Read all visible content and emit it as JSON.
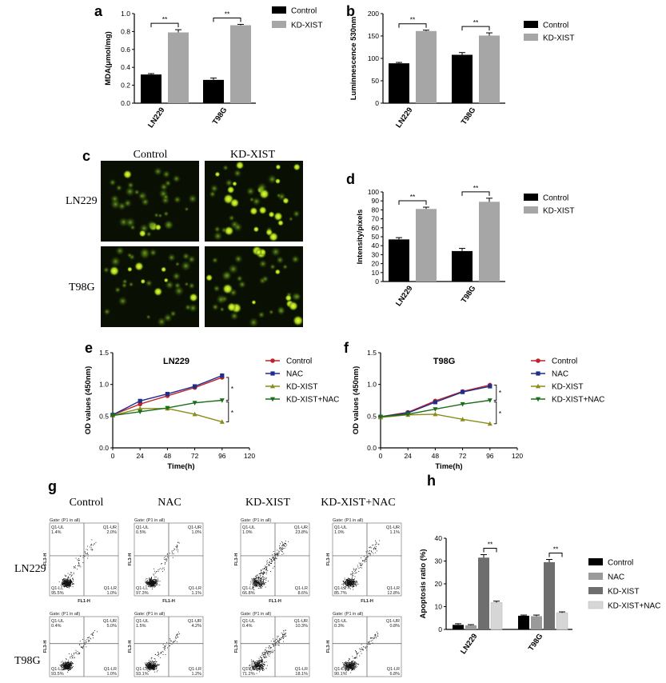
{
  "chart_data": [
    {
      "id": "a",
      "panel_label": "a",
      "type": "bar",
      "ylabel": "MDA(μmol/mg)",
      "yticks": [
        0.0,
        0.2,
        0.4,
        0.6,
        0.8,
        1.0
      ],
      "ylim": [
        0,
        1.0
      ],
      "categories": [
        "LN229",
        "T98G"
      ],
      "series": [
        {
          "name": "Control",
          "color": "#000000",
          "values": [
            0.32,
            0.26
          ],
          "errors": [
            0.01,
            0.02
          ]
        },
        {
          "name": "KD-XIST",
          "color": "#a6a6a6",
          "values": [
            0.79,
            0.87
          ],
          "errors": [
            0.03,
            0.01
          ]
        }
      ],
      "significance": [
        {
          "category": "LN229",
          "label": "**"
        },
        {
          "category": "T98G",
          "label": "**"
        }
      ],
      "legend": "right"
    },
    {
      "id": "b",
      "panel_label": "b",
      "type": "bar",
      "ylabel": "Luminnescence 530nm",
      "yticks": [
        0,
        50,
        100,
        150,
        200
      ],
      "ylim": [
        0,
        200
      ],
      "categories": [
        "LN229",
        "T98G"
      ],
      "series": [
        {
          "name": "Control",
          "color": "#000000",
          "values": [
            89,
            108
          ],
          "errors": [
            2,
            5
          ]
        },
        {
          "name": "KD-XIST",
          "color": "#a6a6a6",
          "values": [
            161,
            151
          ],
          "errors": [
            2,
            6
          ]
        }
      ],
      "significance": [
        {
          "category": "LN229",
          "label": "**"
        },
        {
          "category": "T98G",
          "label": "**"
        }
      ],
      "legend": "right"
    },
    {
      "id": "d",
      "panel_label": "d",
      "type": "bar",
      "ylabel": "Intensity/pixels",
      "yticks": [
        0,
        10,
        20,
        30,
        40,
        50,
        60,
        70,
        80,
        90,
        100
      ],
      "ylim": [
        0,
        100
      ],
      "categories": [
        "LN229",
        "T98G"
      ],
      "series": [
        {
          "name": "Control",
          "color": "#000000",
          "values": [
            47,
            34
          ],
          "errors": [
            2,
            3
          ]
        },
        {
          "name": "KD-XIST",
          "color": "#a6a6a6",
          "values": [
            81,
            89
          ],
          "errors": [
            2,
            4
          ]
        }
      ],
      "significance": [
        {
          "category": "LN229",
          "label": "**"
        },
        {
          "category": "T98G",
          "label": "**"
        }
      ],
      "legend": "right"
    },
    {
      "id": "e",
      "panel_label": "e",
      "type": "line",
      "title": "LN229",
      "xlabel": "Time(h)",
      "ylabel": "OD values (450nm)",
      "x": [
        0,
        24,
        48,
        72,
        96
      ],
      "xticks": [
        0,
        24,
        48,
        72,
        96,
        120
      ],
      "xlim": [
        0,
        120
      ],
      "yticks": [
        0.0,
        0.5,
        1.0,
        1.5
      ],
      "ylim": [
        0,
        1.5
      ],
      "series": [
        {
          "name": "Control",
          "color": "#c0202a",
          "marker": "circle",
          "values": [
            0.52,
            0.69,
            0.82,
            0.95,
            1.11
          ]
        },
        {
          "name": "NAC",
          "color": "#1f2e8c",
          "marker": "square",
          "values": [
            0.52,
            0.74,
            0.85,
            0.97,
            1.14
          ]
        },
        {
          "name": "KD-XIST",
          "color": "#8c8c1a",
          "marker": "triangle-up",
          "values": [
            0.51,
            0.62,
            0.62,
            0.53,
            0.41
          ]
        },
        {
          "name": "KD-XIST+NAC",
          "color": "#1a6e1a",
          "marker": "triangle-down",
          "values": [
            0.51,
            0.57,
            0.63,
            0.71,
            0.75
          ]
        }
      ],
      "annotations": [
        "*",
        "*"
      ],
      "legend": "right"
    },
    {
      "id": "f",
      "panel_label": "f",
      "type": "line",
      "title": "T98G",
      "xlabel": "Time(h)",
      "ylabel": "OD values (450nm)",
      "x": [
        0,
        24,
        48,
        72,
        96
      ],
      "xticks": [
        0,
        24,
        48,
        72,
        96,
        120
      ],
      "xlim": [
        0,
        120
      ],
      "yticks": [
        0.0,
        0.5,
        1.0,
        1.5
      ],
      "ylim": [
        0,
        1.5
      ],
      "series": [
        {
          "name": "Control",
          "color": "#c0202a",
          "marker": "circle",
          "values": [
            0.49,
            0.56,
            0.74,
            0.89,
            0.99
          ]
        },
        {
          "name": "NAC",
          "color": "#1f2e8c",
          "marker": "square",
          "values": [
            0.49,
            0.55,
            0.72,
            0.88,
            0.97
          ]
        },
        {
          "name": "KD-XIST",
          "color": "#8c8c1a",
          "marker": "triangle-up",
          "values": [
            0.48,
            0.52,
            0.53,
            0.45,
            0.38
          ]
        },
        {
          "name": "KD-XIST+NAC",
          "color": "#1a6e1a",
          "marker": "triangle-down",
          "values": [
            0.49,
            0.53,
            0.61,
            0.69,
            0.75
          ]
        }
      ],
      "annotations": [
        "*",
        "*"
      ],
      "legend": "right"
    },
    {
      "id": "h",
      "panel_label": "h",
      "type": "bar",
      "ylabel": "Apoptosis ratio (%)",
      "yticks": [
        0,
        10,
        20,
        30,
        40
      ],
      "ylim": [
        0,
        40
      ],
      "categories": [
        "LN229",
        "T98G"
      ],
      "series": [
        {
          "name": "Control",
          "color": "#000000",
          "values": [
            2.0,
            6.0
          ],
          "errors": [
            0.5,
            0.3
          ]
        },
        {
          "name": "NAC",
          "color": "#9a9a9a",
          "values": [
            1.8,
            5.8
          ],
          "errors": [
            0.3,
            0.5
          ]
        },
        {
          "name": "KD-XIST",
          "color": "#6e6e6e",
          "values": [
            31.5,
            29.5
          ],
          "errors": [
            1.3,
            1.2
          ]
        },
        {
          "name": "KD-XIST+NAC",
          "color": "#d6d6d6",
          "values": [
            11.8,
            7.3
          ],
          "errors": [
            0.6,
            0.4
          ]
        }
      ],
      "significance": [
        {
          "category": "LN229",
          "label": "**"
        },
        {
          "category": "T98G",
          "label": "**"
        }
      ],
      "legend": "right"
    }
  ],
  "panel_c": {
    "label": "c",
    "columns": [
      "Control",
      "KD-XIST"
    ],
    "rows": [
      "LN229",
      "T98G"
    ]
  },
  "panel_g": {
    "label": "g",
    "columns": [
      "Control",
      "NAC",
      "KD-XIST",
      "KD-XIST+NAC"
    ],
    "rows": [
      "LN229",
      "T98G"
    ],
    "gate_label": "Gate: (P1 in all)",
    "quadrant_names": [
      "Q1-UL",
      "Q1-UR",
      "Q1-LL",
      "Q1-LR"
    ],
    "xaxis": "FL1-H",
    "yaxis": "FL3-H",
    "plots": [
      [
        {
          "ul": "1.4%",
          "ur": "2.0%",
          "ll": "95.5%",
          "lr": "1.0%"
        },
        {
          "ul": "0.5%",
          "ur": "1.0%",
          "ll": "97.3%",
          "lr": "1.1%"
        },
        {
          "ul": "1.0%",
          "ur": "23.8%",
          "ll": "66.8%",
          "lr": "8.6%"
        },
        {
          "ul": "1.0%",
          "ur": "1.1%",
          "ll": "85.7%",
          "lr": "12.8%"
        }
      ],
      [
        {
          "ul": "0.4%",
          "ur": "5.0%",
          "ll": "93.5%",
          "lr": "1.0%"
        },
        {
          "ul": "1.5%",
          "ur": "4.2%",
          "ll": "93.1%",
          "lr": "1.2%"
        },
        {
          "ul": "0.4%",
          "ur": "10.3%",
          "ll": "71.2%",
          "lr": "18.1%"
        },
        {
          "ul": "0.3%",
          "ur": "0.8%",
          "ll": "90.1%",
          "lr": "6.8%"
        }
      ]
    ]
  }
}
